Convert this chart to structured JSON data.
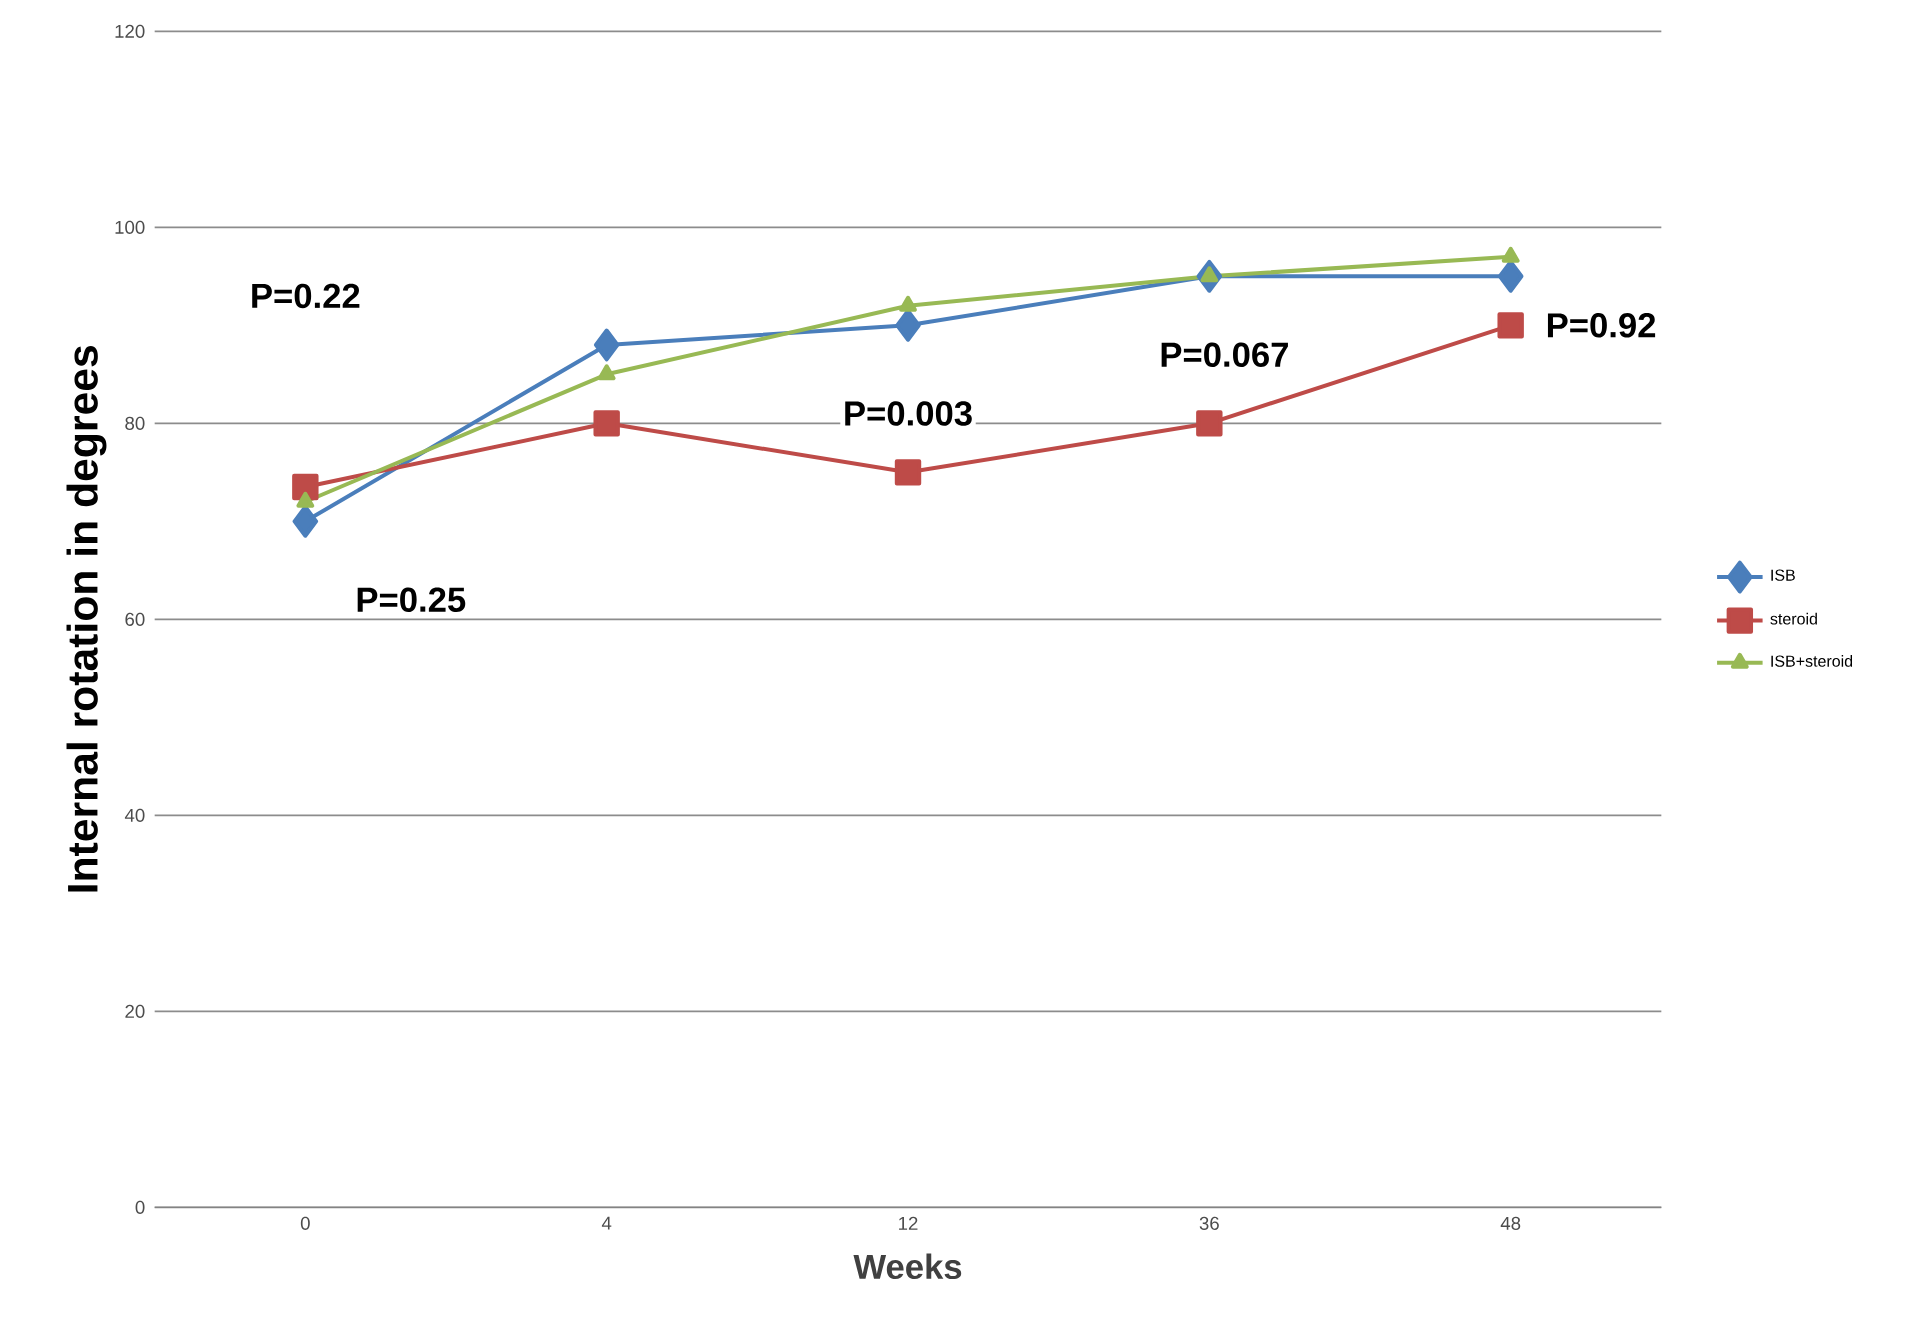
{
  "chart_data": {
    "type": "line",
    "xlabel": "Weeks",
    "ylabel": "Internal rotation in degrees",
    "categories": [
      "0",
      "4",
      "12",
      "36",
      "48"
    ],
    "series": [
      {
        "name": "ISB",
        "color": "#4a7ebb",
        "marker": "diamond",
        "values": [
          70,
          88,
          90,
          95,
          95
        ]
      },
      {
        "name": "steroid",
        "color": "#be4b48",
        "marker": "square",
        "values": [
          73.5,
          80,
          75,
          80,
          90
        ]
      },
      {
        "name": "ISB+steroid",
        "color": "#98b954",
        "marker": "triangle",
        "values": [
          72,
          85,
          92,
          95,
          97
        ]
      }
    ],
    "ylim": [
      0,
      120
    ],
    "yticks": [
      0,
      20,
      40,
      60,
      80,
      100,
      120
    ],
    "grid": "y",
    "legend": "right",
    "annotations": [
      "P=0.25",
      "P=0.22",
      "P=0.003",
      "P=0.067",
      "P=0.92"
    ]
  }
}
